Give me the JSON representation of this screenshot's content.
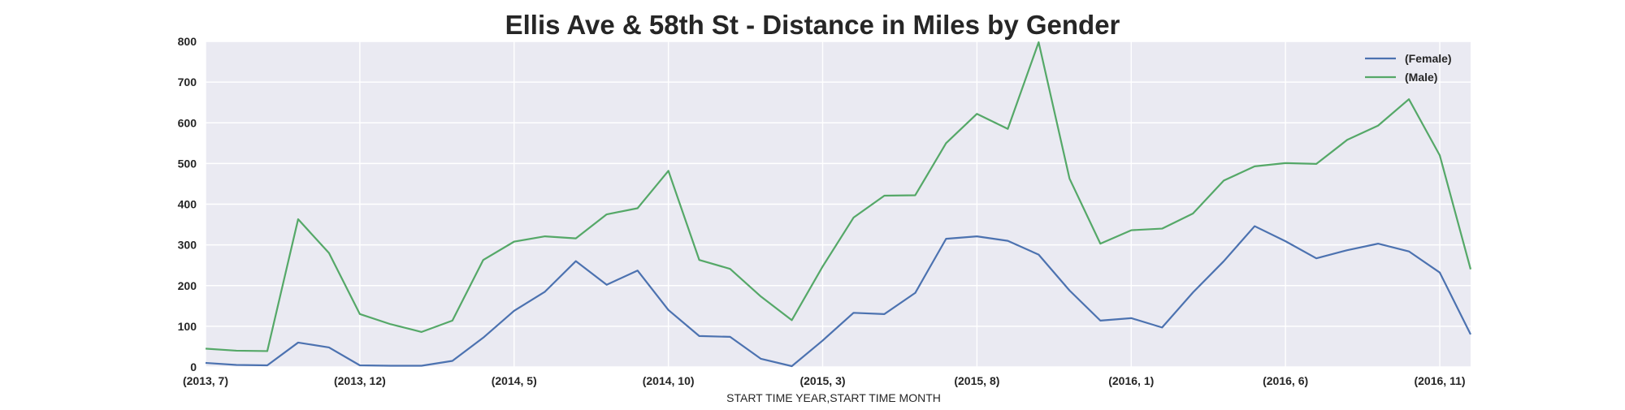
{
  "chart_data": {
    "type": "line",
    "title": "Ellis Ave & 58th St - Distance in Miles by Gender",
    "xlabel": "START TIME YEAR,START TIME MONTH",
    "ylabel": "",
    "ylim": [
      0,
      800
    ],
    "yticks": [
      0,
      100,
      200,
      300,
      400,
      500,
      600,
      700,
      800
    ],
    "x": [
      "(2013, 7)",
      "(2013, 8)",
      "(2013, 9)",
      "(2013, 10)",
      "(2013, 11)",
      "(2013, 12)",
      "(2014, 1)",
      "(2014, 2)",
      "(2014, 3)",
      "(2014, 4)",
      "(2014, 5)",
      "(2014, 6)",
      "(2014, 7)",
      "(2014, 8)",
      "(2014, 9)",
      "(2014, 10)",
      "(2014, 11)",
      "(2014, 12)",
      "(2015, 1)",
      "(2015, 2)",
      "(2015, 3)",
      "(2015, 4)",
      "(2015, 5)",
      "(2015, 6)",
      "(2015, 7)",
      "(2015, 8)",
      "(2015, 9)",
      "(2015, 10)",
      "(2015, 11)",
      "(2015, 12)",
      "(2016, 1)",
      "(2016, 2)",
      "(2016, 3)",
      "(2016, 4)",
      "(2016, 5)",
      "(2016, 6)",
      "(2016, 7)",
      "(2016, 8)",
      "(2016, 9)",
      "(2016, 10)",
      "(2016, 11)",
      "(2016, 12)"
    ],
    "xtick_labels": [
      {
        "index": 0,
        "label": "(2013, 7)"
      },
      {
        "index": 5,
        "label": "(2013, 12)"
      },
      {
        "index": 10,
        "label": "(2014, 5)"
      },
      {
        "index": 15,
        "label": "(2014, 10)"
      },
      {
        "index": 20,
        "label": "(2015, 3)"
      },
      {
        "index": 25,
        "label": "(2015, 8)"
      },
      {
        "index": 30,
        "label": "(2016, 1)"
      },
      {
        "index": 35,
        "label": "(2016, 6)"
      },
      {
        "index": 40,
        "label": "(2016, 11)"
      }
    ],
    "series": [
      {
        "name": "(Female)",
        "color": "#4c72b0",
        "values": [
          10,
          5,
          4,
          60,
          48,
          4,
          3,
          3,
          15,
          72,
          138,
          185,
          260,
          202,
          237,
          140,
          76,
          74,
          20,
          2,
          65,
          133,
          130,
          182,
          315,
          321,
          310,
          276,
          188,
          114,
          120,
          97,
          183,
          260,
          346,
          309,
          267,
          287,
          303,
          284,
          232,
          80
        ]
      },
      {
        "name": "(Male)",
        "color": "#55a868",
        "values": [
          45,
          40,
          39,
          363,
          280,
          130,
          105,
          86,
          114,
          263,
          308,
          321,
          316,
          375,
          390,
          482,
          263,
          241,
          173,
          115,
          247,
          367,
          421,
          422,
          550,
          622,
          585,
          798,
          463,
          303,
          336,
          340,
          377,
          458,
          493,
          501,
          499,
          558,
          593,
          658,
          520,
          240
        ]
      }
    ],
    "legend_position": "top-right",
    "grid": true,
    "colors": {
      "plot_background": "#eaeaf2",
      "grid": "#ffffff"
    }
  }
}
